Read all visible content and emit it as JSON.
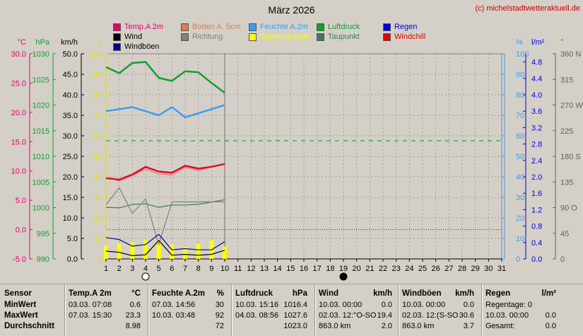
{
  "header": {
    "title": "März 2026",
    "credit": "(c) michelstadtwetteraktuell.de"
  },
  "legend": [
    {
      "label": "Temp.A 2m",
      "color": "#e8006a"
    },
    {
      "label": "Boden A. 5cm",
      "color": "#e07a50"
    },
    {
      "label": "Feuchte A.2m",
      "color": "#3c9cf0"
    },
    {
      "label": "Luftdruck",
      "color": "#10a030"
    },
    {
      "label": "Regen",
      "color": "#0000e0"
    },
    {
      "label": "Wind",
      "color": "#000000"
    },
    {
      "label": "Richtung",
      "color": "#808080"
    },
    {
      "label": "Sonnenschein",
      "color": "#ffff00"
    },
    {
      "label": "Taupunkt",
      "color": "#407868"
    },
    {
      "label": "Windchill",
      "color": "#e00000"
    },
    {
      "label": "Windböen",
      "color": "#000090"
    }
  ],
  "axes": {
    "temp": {
      "unit": "°C",
      "ticks": [
        "30.0",
        "25.0",
        "20.0",
        "15.0",
        "10.0",
        "5.0",
        "0.0",
        "-5.0"
      ],
      "color": "#e8006a",
      "range": [
        -5,
        30
      ]
    },
    "pressure": {
      "unit": "hPa",
      "ticks": [
        "1030",
        "1025",
        "1020",
        "1015",
        "1010",
        "1005",
        "1000",
        "995",
        "990"
      ],
      "color": "#10a030",
      "range": [
        990,
        1030
      ]
    },
    "wind": {
      "unit": "km/h",
      "ticks": [
        "50.0",
        "45.0",
        "40.0",
        "35.0",
        "30.0",
        "25.0",
        "20.0",
        "15.0",
        "10.0",
        "5.0",
        "0.0"
      ],
      "color": "#000000",
      "range": [
        0,
        50
      ]
    },
    "sun": {
      "unit": "h",
      "ticks": [
        "100",
        "90",
        "80",
        "70",
        "60",
        "50",
        "40",
        "30",
        "20",
        "10",
        "0"
      ],
      "color": "#e0e000",
      "range": [
        0,
        100
      ]
    },
    "humidity": {
      "unit": "%",
      "ticks": [
        "100",
        "90",
        "80",
        "70",
        "60",
        "50",
        "40",
        "30",
        "20",
        "10",
        "0"
      ],
      "color": "#3c9cf0",
      "range": [
        0,
        100
      ]
    },
    "rain": {
      "unit": "l/m²",
      "ticks": [
        "4.8",
        "4.4",
        "4.0",
        "3.6",
        "3.2",
        "2.8",
        "2.4",
        "2.0",
        "1.6",
        "1.2",
        "0.8",
        "0.4",
        "0.0"
      ],
      "color": "#0000e0",
      "range": [
        0,
        5.0
      ]
    },
    "direction": {
      "unit": "°",
      "ticks": [
        "360 N",
        "315",
        "270 W",
        "225",
        "180 S",
        "135",
        "90  O",
        "45",
        "0"
      ],
      "color": "#606060",
      "range": [
        0,
        360
      ]
    },
    "x_ticks": [
      "1",
      "2",
      "3",
      "4",
      "5",
      "6",
      "7",
      "8",
      "9",
      "10",
      "11",
      "12",
      "13",
      "14",
      "15",
      "16",
      "17",
      "18",
      "19",
      "20",
      "21",
      "22",
      "23",
      "24",
      "25",
      "26",
      "27",
      "28",
      "29",
      "30",
      "31"
    ]
  },
  "chart_data": {
    "type": "line",
    "x": [
      1,
      2,
      3,
      4,
      5,
      6,
      7,
      8,
      9,
      10
    ],
    "xlim": [
      1,
      31
    ],
    "series": [
      {
        "name": "Luftdruck",
        "axis": "pressure",
        "color": "#10a030",
        "values": [
          1027.4,
          1026.2,
          1028.2,
          1028.4,
          1025.3,
          1024.7,
          1026.6,
          1026.4,
          1024.3,
          1022.4
        ]
      },
      {
        "name": "Feuchte A.2m",
        "axis": "humidity",
        "color": "#3c9cf0",
        "values": [
          72,
          73,
          74,
          72,
          70,
          74,
          69,
          71,
          73,
          75
        ]
      },
      {
        "name": "Temp.A 2m",
        "axis": "temp",
        "color": "#e8006a",
        "values": [
          8.8,
          8.5,
          9.4,
          10.7,
          9.9,
          9.7,
          10.9,
          10.4,
          10.7,
          11.2
        ]
      },
      {
        "name": "Boden A. 5cm",
        "axis": "temp",
        "color": "#e07a50",
        "values": [
          8.9,
          8.3,
          9.2,
          10.3,
          9.5,
          9.3,
          10.6,
          10.1,
          10.6,
          11.2
        ]
      },
      {
        "name": "Taupunkt",
        "axis": "temp",
        "color": "#407868",
        "values": [
          3.8,
          3.7,
          4.3,
          4.4,
          3.8,
          4.2,
          4.2,
          4.3,
          4.7,
          5.1
        ]
      },
      {
        "name": "Richtung",
        "axis": "direction",
        "color": "#808080",
        "values": [
          95,
          125,
          80,
          105,
          25,
          100,
          100,
          100,
          100,
          100
        ]
      },
      {
        "name": "Windböen",
        "axis": "wind",
        "color": "#000090",
        "values": [
          5.2,
          4.7,
          3.1,
          3.5,
          6.0,
          2.2,
          2.5,
          2.2,
          2.2,
          4.2
        ]
      },
      {
        "name": "Wind",
        "axis": "wind",
        "color": "#000000",
        "values": [
          1.9,
          1.6,
          0.8,
          1.0,
          4.5,
          0.9,
          1.1,
          0.9,
          1.1,
          2.1
        ]
      },
      {
        "name": "Windchill",
        "axis": "temp",
        "color": "#e00000",
        "values": [
          8.8,
          8.5,
          9.4,
          10.7,
          9.9,
          9.7,
          10.9,
          10.4,
          10.7,
          11.2
        ]
      }
    ],
    "bars": {
      "name": "Sonnenschein",
      "axis": "sun",
      "color": "#ffff00",
      "values": [
        6.5,
        7.5,
        8,
        9,
        9.5,
        7,
        6,
        7.5,
        9,
        6
      ]
    },
    "reference_lines": [
      {
        "axis": "temp",
        "value": 0,
        "color": "#e00000",
        "style": "dotted"
      },
      {
        "axis": "rain",
        "value": 2.88,
        "color": "#10a030",
        "style": "dashed"
      }
    ],
    "moon_markers": [
      {
        "x": 4,
        "phase": "full"
      },
      {
        "x": 19,
        "phase": "new"
      }
    ]
  },
  "stats": {
    "columns": [
      {
        "title": "Sensor",
        "unit": "",
        "rows": [
          [
            "MinWert",
            ""
          ],
          [
            "MaxWert",
            ""
          ],
          [
            "Durchschnitt",
            ""
          ]
        ]
      },
      {
        "title": "Temp.A 2m",
        "unit": "°C",
        "rows": [
          [
            "03.03.  07:08",
            "0.6"
          ],
          [
            "07.03.  15:30",
            "23.3"
          ],
          [
            "",
            "8.98"
          ]
        ]
      },
      {
        "title": "Feuchte A.2m",
        "unit": "%",
        "rows": [
          [
            "07.03.  14:56",
            "30"
          ],
          [
            "10.03.  03:48",
            "92"
          ],
          [
            "",
            "72"
          ]
        ]
      },
      {
        "title": "Luftdruck",
        "unit": "hPa",
        "rows": [
          [
            "10.03.  15:16",
            "1016.4"
          ],
          [
            "04.03.  08:56",
            "1027.6"
          ],
          [
            "",
            "1023.0"
          ]
        ]
      },
      {
        "title": "Wind",
        "unit": "km/h",
        "rows": [
          [
            "10.03.  00:00",
            "0.0"
          ],
          [
            "02.03.  12:°O-SO",
            "19.4"
          ],
          [
            "863.0 km",
            "2.0"
          ]
        ]
      },
      {
        "title": "Windböen",
        "unit": "km/h",
        "rows": [
          [
            "10.03.  00:00",
            "0.0"
          ],
          [
            "02.03.  12:(S-SO",
            "30.6"
          ],
          [
            "863.0 km",
            "3.7"
          ]
        ]
      },
      {
        "title": "Regen",
        "unit": "l/m²",
        "rows": [
          [
            "Regentage: 0",
            ""
          ],
          [
            "10.03.  00:00",
            "0.0"
          ],
          [
            "Gesamt:",
            "0.0"
          ]
        ]
      }
    ]
  }
}
